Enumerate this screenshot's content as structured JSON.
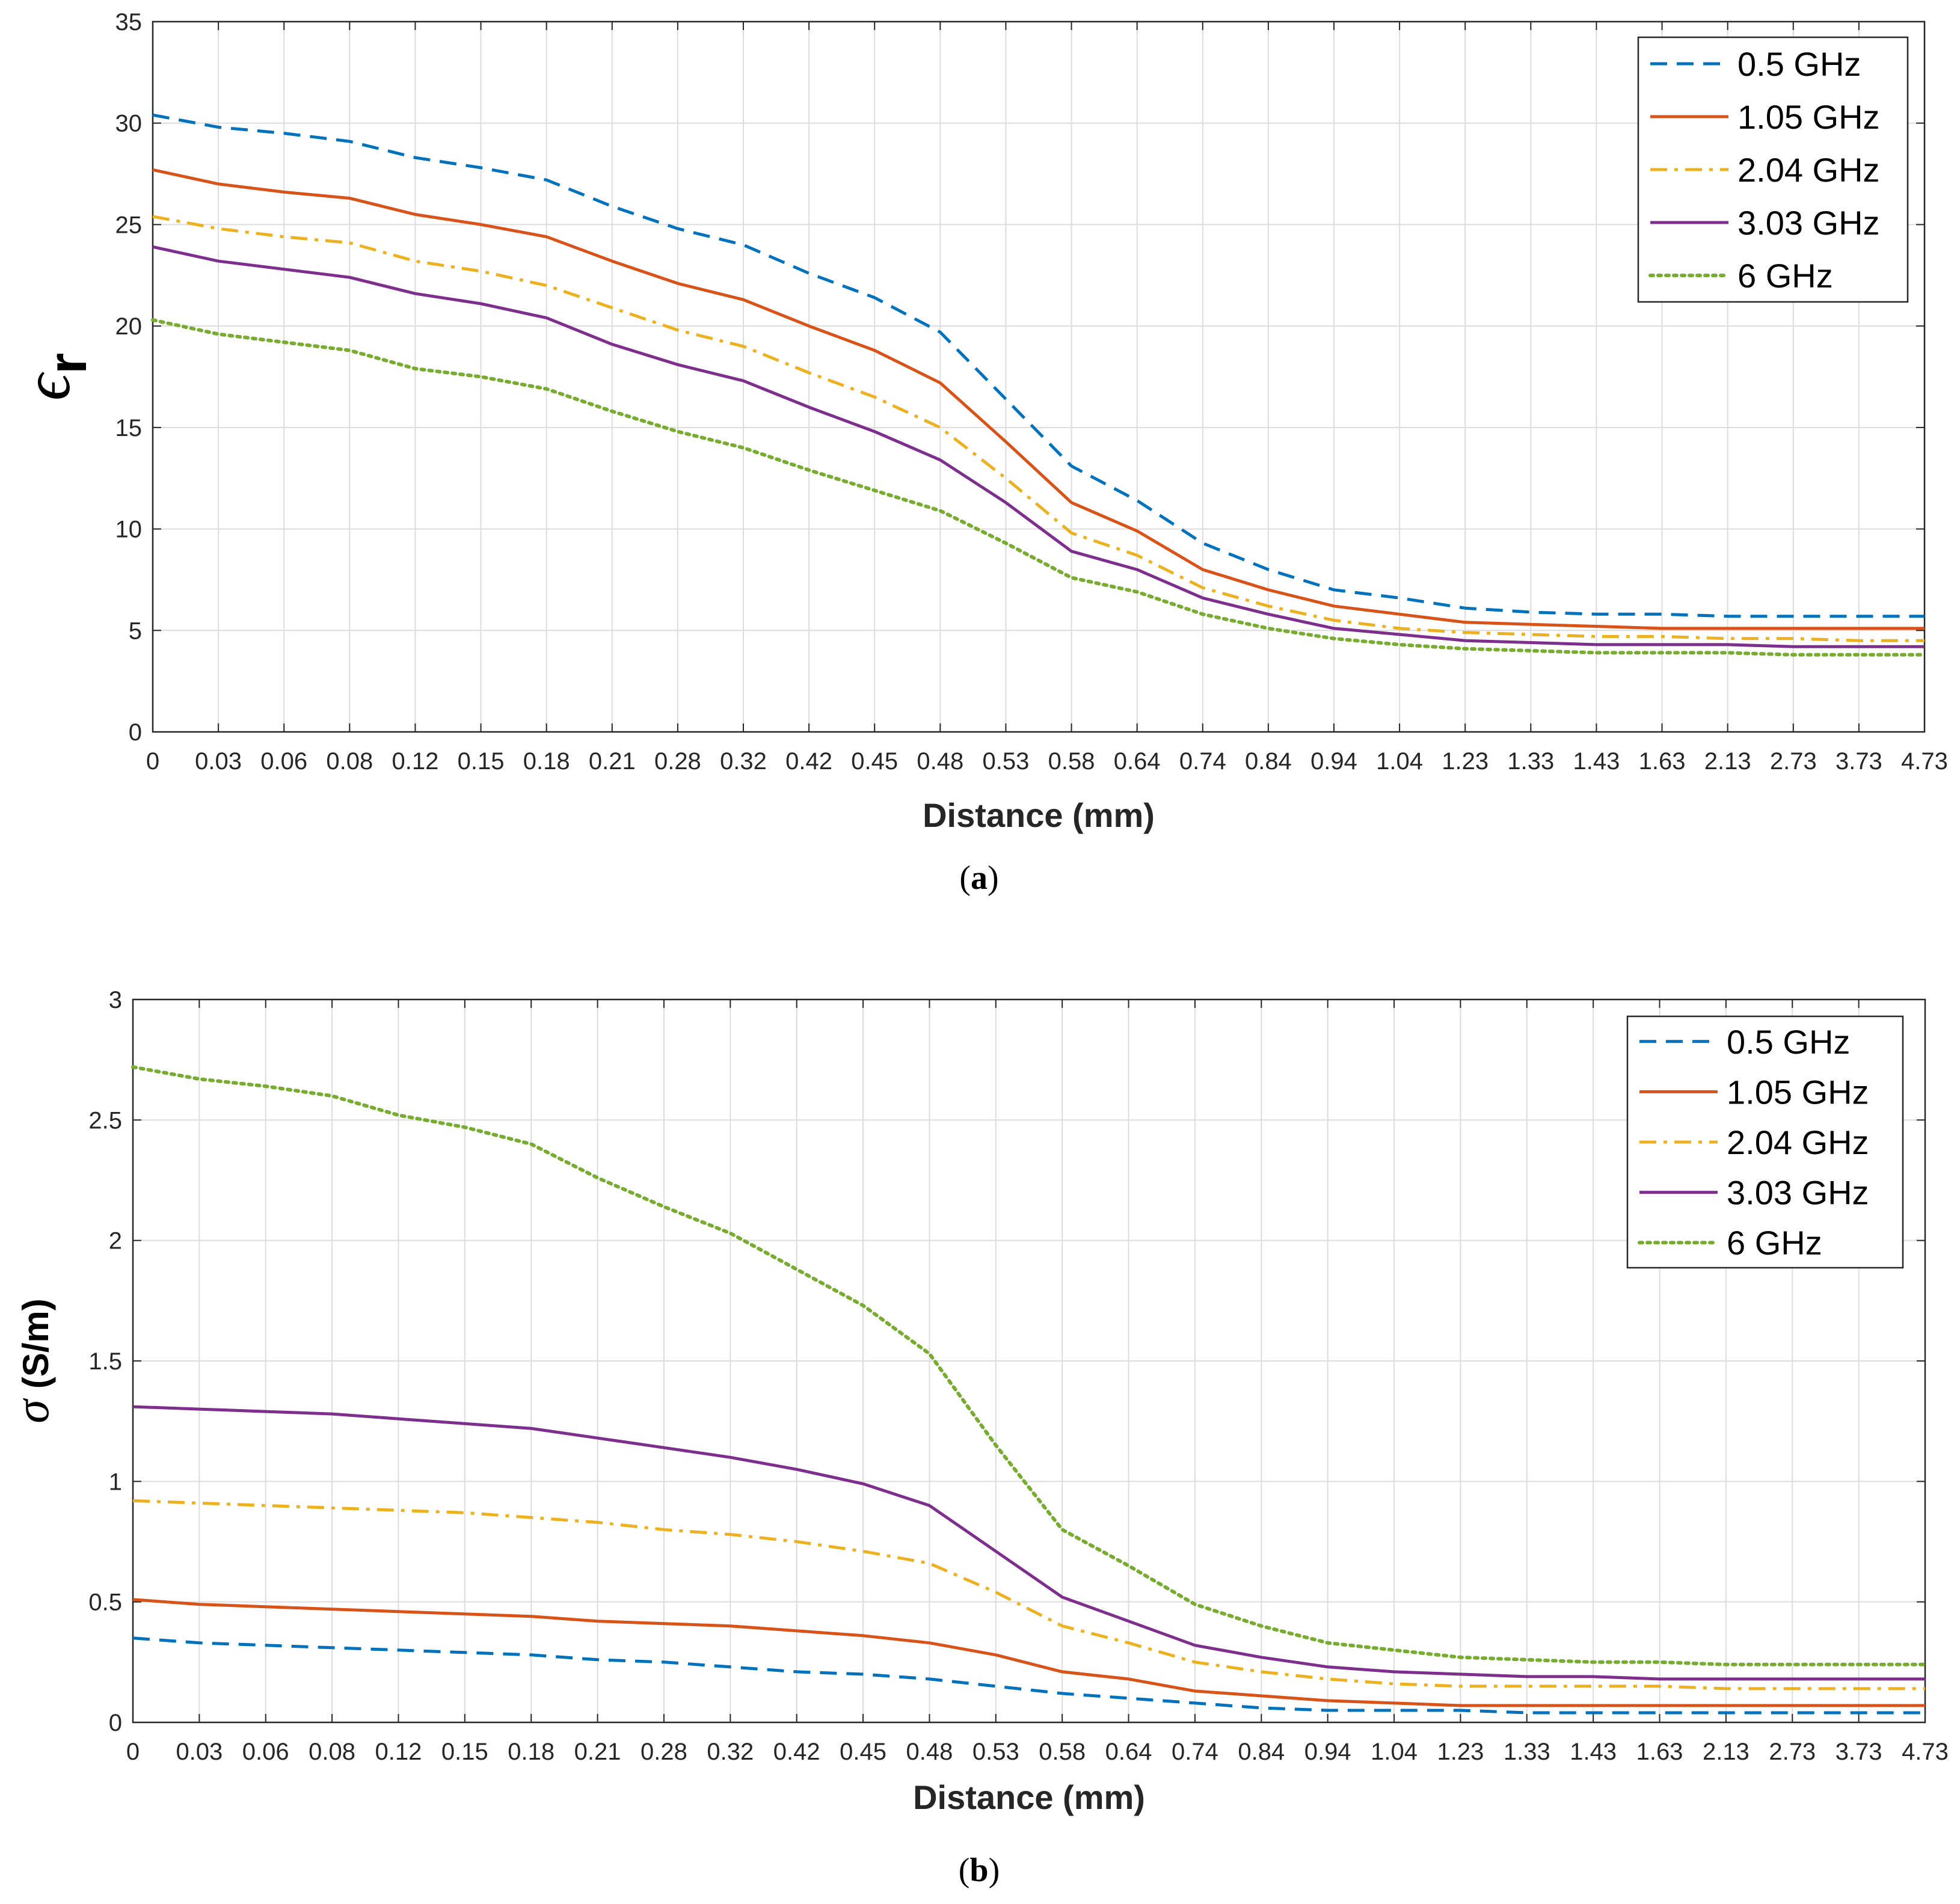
{
  "chart_data": [
    {
      "id": "a",
      "type": "line",
      "panel_label": "a",
      "xlabel": "Distance  (mm)",
      "ylabel_symbol": "ϵ",
      "ylabel_subscript": "r",
      "ylabel_unit": "",
      "ylim": [
        0,
        35
      ],
      "yticks": [
        0,
        5,
        10,
        15,
        20,
        25,
        30,
        35
      ],
      "ytick_labels": [
        "0",
        "5",
        "10",
        "15",
        "20",
        "25",
        "30",
        "35"
      ],
      "categories": [
        "0",
        "0.03",
        "0.06",
        "0.08",
        "0.12",
        "0.15",
        "0.18",
        "0.21",
        "0.28",
        "0.32",
        "0.42",
        "0.45",
        "0.48",
        "0.53",
        "0.58",
        "0.64",
        "0.74",
        "0.84",
        "0.94",
        "1.04",
        "1.23",
        "1.33",
        "1.43",
        "1.63",
        "2.13",
        "2.73",
        "3.73",
        "4.73"
      ],
      "grid": true,
      "legend_position": "top-right",
      "series": [
        {
          "name": "0.5 GHz",
          "color": "#0072BD",
          "style": "dashed",
          "values": [
            30.4,
            29.8,
            29.5,
            29.1,
            28.3,
            27.8,
            27.2,
            25.9,
            24.8,
            24.0,
            22.6,
            21.4,
            19.7,
            16.4,
            13.1,
            11.4,
            9.3,
            8.0,
            7.0,
            6.6,
            6.1,
            5.9,
            5.8,
            5.8,
            5.7,
            5.7,
            5.7,
            5.7
          ]
        },
        {
          "name": "1.05 GHz",
          "color": "#D95319",
          "style": "solid",
          "values": [
            27.7,
            27.0,
            26.6,
            26.3,
            25.5,
            25.0,
            24.4,
            23.2,
            22.1,
            21.3,
            20.0,
            18.8,
            17.2,
            14.3,
            11.3,
            9.9,
            8.0,
            7.0,
            6.2,
            5.8,
            5.4,
            5.3,
            5.2,
            5.1,
            5.1,
            5.1,
            5.1,
            5.1
          ]
        },
        {
          "name": "2.04 GHz",
          "color": "#EDB120",
          "style": "dashdot",
          "values": [
            25.4,
            24.8,
            24.4,
            24.1,
            23.2,
            22.7,
            22.0,
            20.9,
            19.8,
            19.0,
            17.7,
            16.5,
            15.0,
            12.5,
            9.8,
            8.7,
            7.1,
            6.2,
            5.5,
            5.1,
            4.9,
            4.8,
            4.7,
            4.7,
            4.6,
            4.6,
            4.5,
            4.5
          ]
        },
        {
          "name": "3.03 GHz",
          "color": "#7E2F8E",
          "style": "solid",
          "values": [
            23.9,
            23.2,
            22.8,
            22.4,
            21.6,
            21.1,
            20.4,
            19.1,
            18.1,
            17.3,
            16.0,
            14.8,
            13.4,
            11.3,
            8.9,
            8.0,
            6.6,
            5.8,
            5.1,
            4.8,
            4.5,
            4.4,
            4.3,
            4.3,
            4.3,
            4.2,
            4.2,
            4.2
          ]
        },
        {
          "name": "6 GHz",
          "color": "#77AC30",
          "style": "dotted",
          "values": [
            20.3,
            19.6,
            19.2,
            18.8,
            17.9,
            17.5,
            16.9,
            15.8,
            14.8,
            14.0,
            12.9,
            11.9,
            10.9,
            9.3,
            7.6,
            6.9,
            5.8,
            5.1,
            4.6,
            4.3,
            4.1,
            4.0,
            3.9,
            3.9,
            3.9,
            3.8,
            3.8,
            3.8
          ]
        }
      ]
    },
    {
      "id": "b",
      "type": "line",
      "panel_label": "b",
      "xlabel": "Distance  (mm)",
      "ylabel_symbol": "σ",
      "ylabel_subscript": "",
      "ylabel_unit": "(S/m)",
      "ylim": [
        0,
        3
      ],
      "yticks": [
        0,
        0.5,
        1,
        1.5,
        2,
        2.5,
        3
      ],
      "ytick_labels": [
        "0",
        "0.5",
        "1",
        "1.5",
        "2",
        "2.5",
        "3"
      ],
      "categories": [
        "0",
        "0.03",
        "0.06",
        "0.08",
        "0.12",
        "0.15",
        "0.18",
        "0.21",
        "0.28",
        "0.32",
        "0.42",
        "0.45",
        "0.48",
        "0.53",
        "0.58",
        "0.64",
        "0.74",
        "0.84",
        "0.94",
        "1.04",
        "1.23",
        "1.33",
        "1.43",
        "1.63",
        "2.13",
        "2.73",
        "3.73",
        "4.73"
      ],
      "grid": true,
      "legend_position": "top-right",
      "series": [
        {
          "name": "0.5 GHz",
          "color": "#0072BD",
          "style": "dashed",
          "values": [
            0.35,
            0.33,
            0.32,
            0.31,
            0.3,
            0.29,
            0.28,
            0.26,
            0.25,
            0.23,
            0.21,
            0.2,
            0.18,
            0.15,
            0.12,
            0.1,
            0.08,
            0.06,
            0.05,
            0.05,
            0.05,
            0.04,
            0.04,
            0.04,
            0.04,
            0.04,
            0.04,
            0.04
          ]
        },
        {
          "name": "1.05 GHz",
          "color": "#D95319",
          "style": "solid",
          "values": [
            0.51,
            0.49,
            0.48,
            0.47,
            0.46,
            0.45,
            0.44,
            0.42,
            0.41,
            0.4,
            0.38,
            0.36,
            0.33,
            0.28,
            0.21,
            0.18,
            0.13,
            0.11,
            0.09,
            0.08,
            0.07,
            0.07,
            0.07,
            0.07,
            0.07,
            0.07,
            0.07,
            0.07
          ]
        },
        {
          "name": "2.04 GHz",
          "color": "#EDB120",
          "style": "dashdot",
          "values": [
            0.92,
            0.91,
            0.9,
            0.89,
            0.88,
            0.87,
            0.85,
            0.83,
            0.8,
            0.78,
            0.75,
            0.71,
            0.66,
            0.54,
            0.4,
            0.33,
            0.25,
            0.21,
            0.18,
            0.16,
            0.15,
            0.15,
            0.15,
            0.15,
            0.14,
            0.14,
            0.14,
            0.14
          ]
        },
        {
          "name": "3.03 GHz",
          "color": "#7E2F8E",
          "style": "solid",
          "values": [
            1.31,
            1.3,
            1.29,
            1.28,
            1.26,
            1.24,
            1.22,
            1.18,
            1.14,
            1.1,
            1.05,
            0.99,
            0.9,
            0.71,
            0.52,
            0.42,
            0.32,
            0.27,
            0.23,
            0.21,
            0.2,
            0.19,
            0.19,
            0.18,
            0.18,
            0.18,
            0.18,
            0.18
          ]
        },
        {
          "name": "6 GHz",
          "color": "#77AC30",
          "style": "dotted",
          "values": [
            2.72,
            2.67,
            2.64,
            2.6,
            2.52,
            2.47,
            2.4,
            2.26,
            2.14,
            2.03,
            1.88,
            1.73,
            1.53,
            1.15,
            0.8,
            0.65,
            0.49,
            0.4,
            0.33,
            0.3,
            0.27,
            0.26,
            0.25,
            0.25,
            0.24,
            0.24,
            0.24,
            0.24
          ]
        }
      ]
    }
  ]
}
